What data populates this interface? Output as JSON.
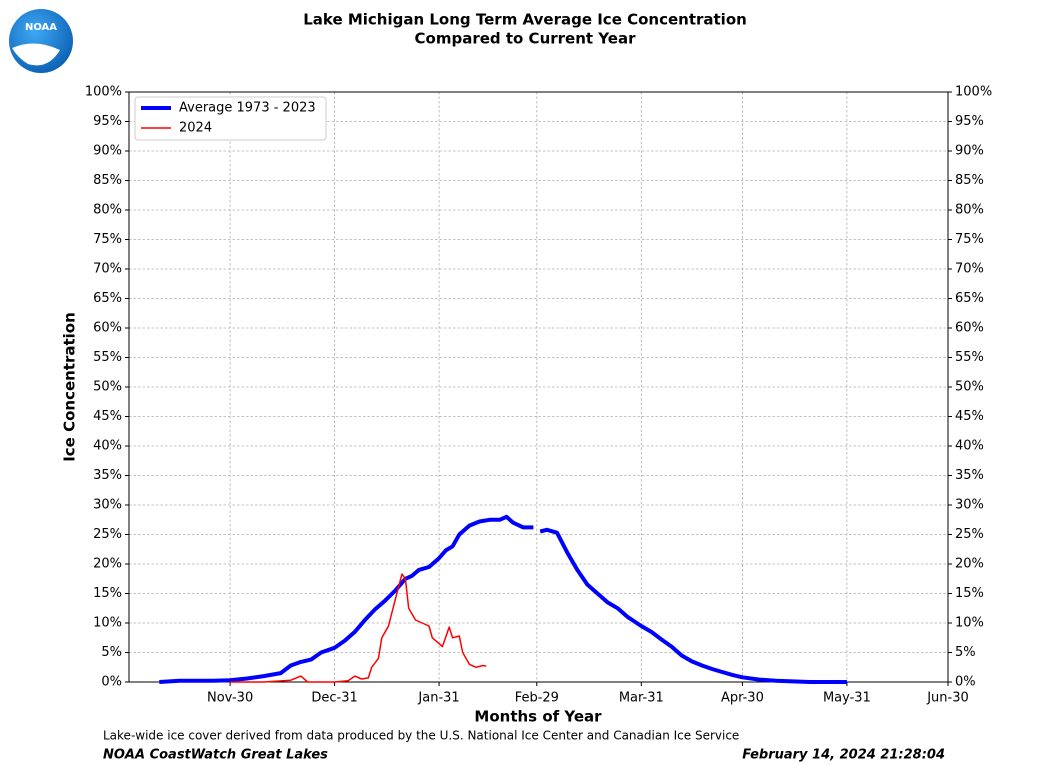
{
  "logo_text": "NOAA",
  "chart_data": {
    "type": "line",
    "title": "Lake Michigan Long Term Average Ice Concentration",
    "subtitle": "Compared to Current Year",
    "xlabel": "Months of Year",
    "ylabel": "Ice Concentration",
    "footnote": "Lake-wide ice cover derived from data produced by the U.S. National Ice Center and Canadian Ice Service",
    "source": "NOAA CoastWatch Great Lakes",
    "timestamp": "February 14, 2024 21:28:04",
    "xlim": [
      "Oct-31",
      "Jun-30"
    ],
    "xticks": [
      "Nov-30",
      "Dec-31",
      "Jan-31",
      "Feb-29",
      "Mar-31",
      "Apr-30",
      "May-31",
      "Jun-30"
    ],
    "ylim": [
      0,
      100
    ],
    "yticks": [
      {
        "value": 0,
        "label": "0%"
      },
      {
        "value": 5,
        "label": "5%"
      },
      {
        "value": 10,
        "label": "10%"
      },
      {
        "value": 15,
        "label": "15%"
      },
      {
        "value": 20,
        "label": "20%"
      },
      {
        "value": 25,
        "label": "25%"
      },
      {
        "value": 30,
        "label": "30%"
      },
      {
        "value": 35,
        "label": "35%"
      },
      {
        "value": 40,
        "label": "40%"
      },
      {
        "value": 45,
        "label": "45%"
      },
      {
        "value": 50,
        "label": "50%"
      },
      {
        "value": 55,
        "label": "55%"
      },
      {
        "value": 60,
        "label": "60%"
      },
      {
        "value": 65,
        "label": "65%"
      },
      {
        "value": 70,
        "label": "70%"
      },
      {
        "value": 75,
        "label": "75%"
      },
      {
        "value": 80,
        "label": "80%"
      },
      {
        "value": 85,
        "label": "85%"
      },
      {
        "value": 90,
        "label": "90%"
      },
      {
        "value": 95,
        "label": "95%"
      },
      {
        "value": 100,
        "label": "100%"
      }
    ],
    "grid": true,
    "legend": "upper left",
    "series": [
      {
        "name": "Average 1973 - 2023",
        "color": "#0000ff",
        "x": [
          "Nov-09",
          "Nov-15",
          "Nov-20",
          "Nov-25",
          "Nov-30",
          "Dec-05",
          "Dec-10",
          "Dec-15",
          "Dec-18",
          "Dec-21",
          "Dec-24",
          "Dec-27",
          "Dec-31",
          "Jan-03",
          "Jan-06",
          "Jan-09",
          "Jan-12",
          "Jan-15",
          "Jan-18",
          "Jan-21",
          "Jan-23",
          "Jan-25",
          "Jan-28",
          "Jan-31",
          "Feb-02",
          "Feb-04",
          "Feb-06",
          "Feb-09",
          "Feb-12",
          "Feb-15",
          "Feb-18",
          "Feb-20",
          "Feb-22",
          "Feb-25",
          "Feb-28",
          "Feb-29",
          "Mar-01",
          "Mar-03",
          "Mar-06",
          "Mar-09",
          "Mar-12",
          "Mar-15",
          "Mar-18",
          "Mar-21",
          "Mar-24",
          "Mar-27",
          "Mar-31",
          "Apr-03",
          "Apr-06",
          "Apr-09",
          "Apr-12",
          "Apr-15",
          "Apr-18",
          "Apr-21",
          "Apr-24",
          "Apr-27",
          "Apr-30",
          "May-05",
          "May-10",
          "May-15",
          "May-20",
          "May-25",
          "May-31"
        ],
        "values": [
          0,
          0.2,
          0.2,
          0.2,
          0.3,
          0.6,
          1.0,
          1.5,
          2.8,
          3.4,
          3.8,
          5.0,
          5.8,
          7.0,
          8.5,
          10.5,
          12.3,
          13.8,
          15.5,
          17.5,
          18.0,
          19.0,
          19.5,
          21.0,
          22.3,
          23.0,
          25.0,
          26.5,
          27.2,
          27.5,
          27.5,
          28.0,
          27.0,
          26.2,
          26.2,
          null,
          25.5,
          25.8,
          25.3,
          22.0,
          19.0,
          16.5,
          15.0,
          13.5,
          12.5,
          11.0,
          9.5,
          8.5,
          7.2,
          6.0,
          4.5,
          3.5,
          2.8,
          2.2,
          1.7,
          1.2,
          0.8,
          0.4,
          0.2,
          0.1,
          0,
          0,
          0
        ]
      },
      {
        "name": "2024",
        "color": "#ff0000",
        "x": [
          "Nov-30",
          "Dec-10",
          "Dec-18",
          "Dec-21",
          "Dec-23",
          "Dec-31",
          "Jan-04",
          "Jan-06",
          "Jan-08",
          "Jan-10",
          "Jan-11",
          "Jan-13",
          "Jan-14",
          "Jan-16",
          "Jan-18",
          "Jan-20",
          "Jan-21",
          "Jan-22",
          "Jan-24",
          "Jan-26",
          "Jan-28",
          "Jan-29",
          "Jan-31",
          "Feb-01",
          "Feb-03",
          "Feb-04",
          "Feb-06",
          "Feb-07",
          "Feb-09",
          "Feb-11",
          "Feb-13",
          "Feb-14"
        ],
        "values": [
          0,
          0,
          0.3,
          1.0,
          0,
          0,
          0.2,
          1.0,
          0.5,
          0.7,
          2.5,
          4.0,
          7.5,
          9.5,
          14.0,
          18.3,
          17.5,
          12.5,
          10.5,
          10.0,
          9.5,
          7.5,
          6.5,
          6.0,
          9.3,
          7.5,
          7.8,
          5.0,
          3.0,
          2.5,
          2.8,
          2.7
        ]
      }
    ]
  }
}
